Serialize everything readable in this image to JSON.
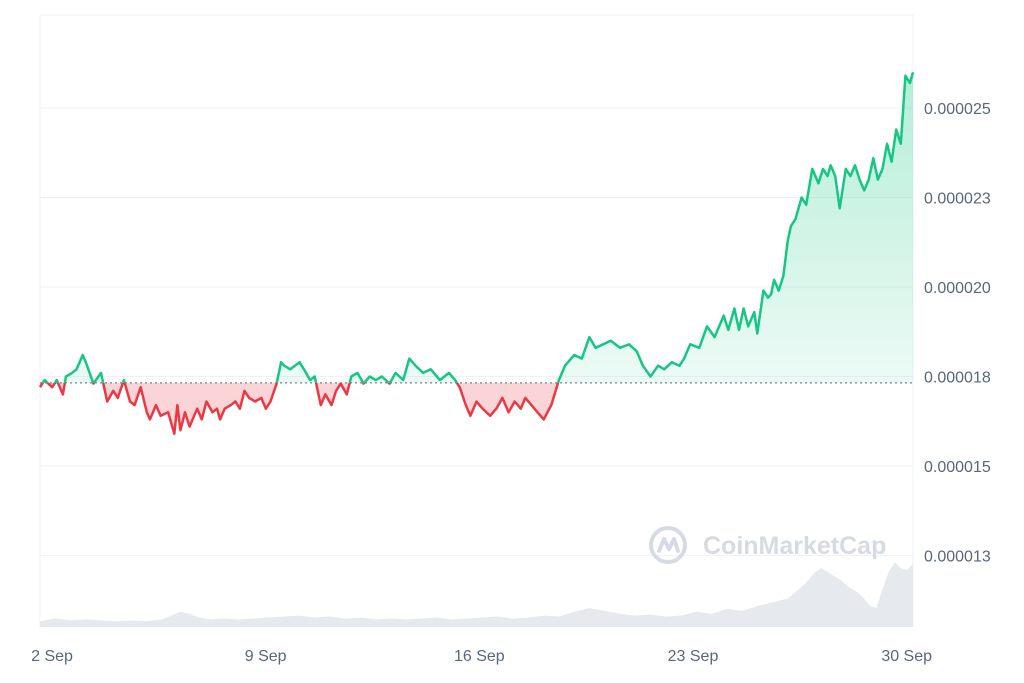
{
  "chart_data": {
    "type": "line",
    "watermark": "CoinMarketCap",
    "baseline": 1.732e-05,
    "ylim": [
      1.05e-05,
      2.76e-05
    ],
    "y_ticks": [
      {
        "value": 2.5e-05,
        "label": "0.000025"
      },
      {
        "value": 2.25e-05,
        "label": "0.000023"
      },
      {
        "value": 2e-05,
        "label": "0.000020"
      },
      {
        "value": 1.75e-05,
        "label": "0.000018"
      },
      {
        "value": 1.5e-05,
        "label": "0.000015"
      },
      {
        "value": 1.25e-05,
        "label": "0.000013"
      }
    ],
    "x_ticks": [
      {
        "day": 2,
        "label": "2 Sep"
      },
      {
        "day": 9,
        "label": "9 Sep"
      },
      {
        "day": 16,
        "label": "16 Sep"
      },
      {
        "day": 23,
        "label": "23 Sep"
      },
      {
        "day": 30,
        "label": "30 Sep"
      }
    ],
    "x_range_days": [
      2,
      30.6
    ],
    "colors": {
      "up": "#16c784",
      "down": "#ea3943",
      "grid": "#eff2f5",
      "volume": "#e6e9ee"
    },
    "series": [
      {
        "x": [
          2.0,
          2.15,
          2.4,
          2.55,
          2.75,
          2.85,
          3.05,
          3.2,
          3.4,
          3.5,
          3.75,
          4.0,
          4.2,
          4.4,
          4.55,
          4.75,
          4.95,
          5.1,
          5.3,
          5.5,
          5.6,
          5.8,
          5.95,
          6.2,
          6.4,
          6.5,
          6.6,
          6.75,
          6.9,
          7.05,
          7.15,
          7.3,
          7.45,
          7.65,
          7.8,
          7.9,
          8.05,
          8.25,
          8.4,
          8.55,
          8.7,
          8.85,
          9.05,
          9.25,
          9.4,
          9.55,
          9.75,
          9.9,
          10.0,
          10.2,
          10.5,
          10.65,
          10.85,
          11.0,
          11.2,
          11.35,
          11.55,
          11.7,
          11.85,
          12.05,
          12.2,
          12.4,
          12.6,
          12.8,
          13.0,
          13.2,
          13.45,
          13.65,
          13.9,
          14.1,
          14.3,
          14.55,
          14.8,
          15.1,
          15.4,
          15.6,
          15.75,
          15.95,
          16.1,
          16.3,
          16.5,
          16.75,
          16.95,
          17.15,
          17.35,
          17.55,
          17.75,
          17.9,
          18.1,
          18.3,
          18.5,
          18.75,
          19.0,
          19.2,
          19.5,
          19.75,
          20.0,
          20.2,
          20.45,
          20.7,
          21.0,
          21.3,
          21.55,
          21.75,
          22.0,
          22.25,
          22.45,
          22.7,
          22.95,
          23.1,
          23.3,
          23.6,
          23.85,
          24.1,
          24.4,
          24.55,
          24.75,
          24.9,
          25.05,
          25.2,
          25.4,
          25.5,
          25.7,
          25.85,
          25.95,
          26.05,
          26.2,
          26.35,
          26.5,
          26.6,
          26.75,
          26.95,
          27.1,
          27.3,
          27.5,
          27.65,
          27.8,
          27.9,
          28.05,
          28.2,
          28.4,
          28.55,
          28.7,
          28.85,
          29.0,
          29.15,
          29.3,
          29.45,
          29.6,
          29.75,
          29.9,
          30.05,
          30.2,
          30.35,
          30.5,
          30.6
        ],
        "y": [
          1.72e-05,
          1.74e-05,
          1.72e-05,
          1.74e-05,
          1.7e-05,
          1.75e-05,
          1.76e-05,
          1.77e-05,
          1.81e-05,
          1.79e-05,
          1.73e-05,
          1.76e-05,
          1.68e-05,
          1.71e-05,
          1.69e-05,
          1.74e-05,
          1.68e-05,
          1.67e-05,
          1.72e-05,
          1.65e-05,
          1.63e-05,
          1.67e-05,
          1.64e-05,
          1.65e-05,
          1.59e-05,
          1.67e-05,
          1.6e-05,
          1.65e-05,
          1.61e-05,
          1.64e-05,
          1.66e-05,
          1.63e-05,
          1.68e-05,
          1.65e-05,
          1.66e-05,
          1.63e-05,
          1.66e-05,
          1.67e-05,
          1.68e-05,
          1.66e-05,
          1.71e-05,
          1.69e-05,
          1.68e-05,
          1.69e-05,
          1.66e-05,
          1.68e-05,
          1.73e-05,
          1.79e-05,
          1.78e-05,
          1.77e-05,
          1.79e-05,
          1.77e-05,
          1.74e-05,
          1.75e-05,
          1.67e-05,
          1.7e-05,
          1.67e-05,
          1.71e-05,
          1.73e-05,
          1.7e-05,
          1.75e-05,
          1.76e-05,
          1.73e-05,
          1.75e-05,
          1.74e-05,
          1.75e-05,
          1.73e-05,
          1.76e-05,
          1.74e-05,
          1.8e-05,
          1.78e-05,
          1.76e-05,
          1.77e-05,
          1.74e-05,
          1.76e-05,
          1.74e-05,
          1.72e-05,
          1.67e-05,
          1.64e-05,
          1.68e-05,
          1.66e-05,
          1.64e-05,
          1.66e-05,
          1.69e-05,
          1.65e-05,
          1.68e-05,
          1.66e-05,
          1.69e-05,
          1.67e-05,
          1.65e-05,
          1.63e-05,
          1.67e-05,
          1.74e-05,
          1.78e-05,
          1.81e-05,
          1.8e-05,
          1.86e-05,
          1.83e-05,
          1.84e-05,
          1.85e-05,
          1.83e-05,
          1.84e-05,
          1.82e-05,
          1.78e-05,
          1.75e-05,
          1.78e-05,
          1.77e-05,
          1.79e-05,
          1.78e-05,
          1.8e-05,
          1.84e-05,
          1.83e-05,
          1.89e-05,
          1.86e-05,
          1.92e-05,
          1.88e-05,
          1.94e-05,
          1.88e-05,
          1.94e-05,
          1.89e-05,
          1.93e-05,
          1.87e-05,
          1.99e-05,
          1.97e-05,
          1.98e-05,
          2.02e-05,
          1.99e-05,
          2.03e-05,
          2.13e-05,
          2.17e-05,
          2.19e-05,
          2.25e-05,
          2.23e-05,
          2.33e-05,
          2.29e-05,
          2.33e-05,
          2.31e-05,
          2.34e-05,
          2.31e-05,
          2.22e-05,
          2.33e-05,
          2.31e-05,
          2.34e-05,
          2.3e-05,
          2.27e-05,
          2.3e-05,
          2.36e-05,
          2.3e-05,
          2.33e-05,
          2.4e-05,
          2.35e-05,
          2.44e-05,
          2.4e-05,
          2.59e-05,
          2.57e-05,
          2.6e-05
        ]
      }
    ],
    "volume": {
      "x": [
        2.0,
        2.5,
        3.0,
        3.5,
        4.0,
        4.5,
        5.0,
        5.5,
        6.0,
        6.3,
        6.6,
        6.9,
        7.2,
        7.6,
        8.0,
        8.5,
        9.0,
        9.5,
        10.0,
        10.5,
        11.0,
        11.5,
        12.0,
        12.5,
        13.0,
        13.5,
        14.0,
        14.5,
        15.0,
        15.5,
        16.0,
        16.5,
        17.0,
        17.5,
        18.0,
        18.5,
        19.0,
        19.5,
        20.0,
        20.5,
        21.0,
        21.5,
        22.0,
        22.5,
        23.0,
        23.5,
        24.0,
        24.5,
        25.0,
        25.5,
        26.0,
        26.5,
        26.8,
        27.1,
        27.4,
        27.6,
        27.9,
        28.2,
        28.5,
        28.8,
        29.0,
        29.2,
        29.4,
        29.6,
        29.8,
        30.0,
        30.2,
        30.4,
        30.6
      ],
      "v": [
        0.06,
        0.09,
        0.07,
        0.08,
        0.07,
        0.06,
        0.07,
        0.06,
        0.08,
        0.12,
        0.16,
        0.14,
        0.1,
        0.08,
        0.09,
        0.08,
        0.09,
        0.1,
        0.11,
        0.12,
        0.1,
        0.11,
        0.09,
        0.1,
        0.08,
        0.09,
        0.08,
        0.09,
        0.1,
        0.08,
        0.09,
        0.1,
        0.11,
        0.09,
        0.1,
        0.12,
        0.11,
        0.16,
        0.2,
        0.17,
        0.14,
        0.12,
        0.13,
        0.11,
        0.12,
        0.16,
        0.14,
        0.19,
        0.17,
        0.22,
        0.26,
        0.3,
        0.38,
        0.47,
        0.58,
        0.62,
        0.56,
        0.5,
        0.42,
        0.36,
        0.3,
        0.22,
        0.2,
        0.4,
        0.58,
        0.68,
        0.62,
        0.6,
        0.66
      ]
    }
  }
}
